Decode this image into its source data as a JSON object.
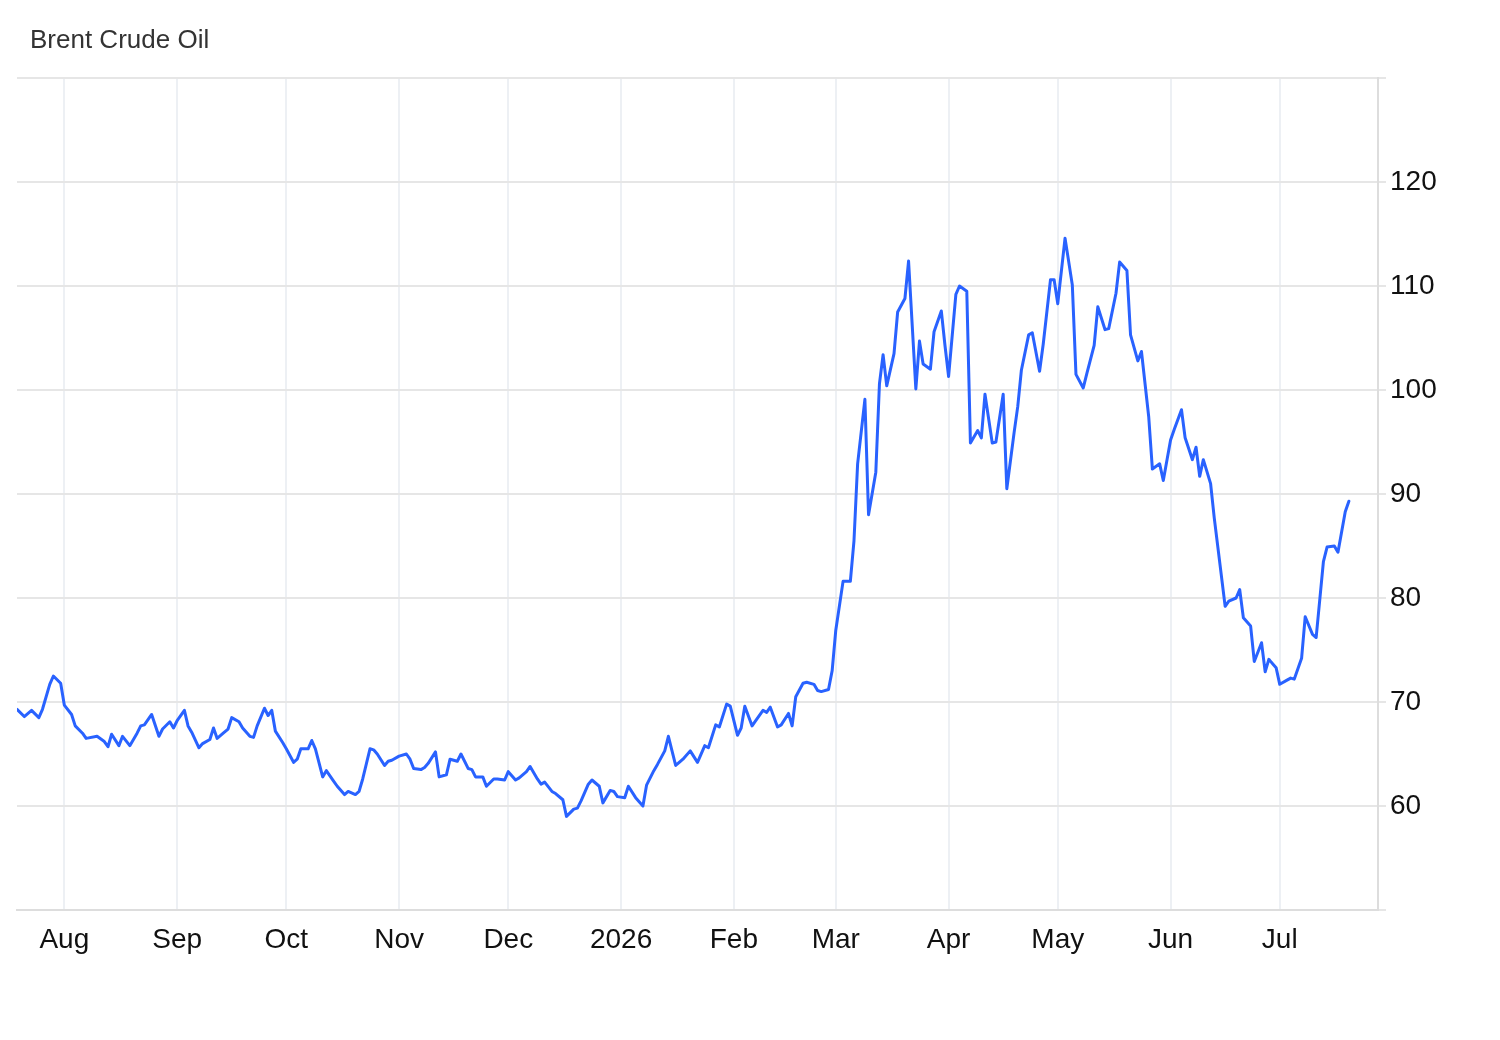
{
  "chart_data": {
    "type": "line",
    "title": "Brent Crude Oil",
    "x": [
      "2025-07-19",
      "2025-07-21",
      "2025-07-23",
      "2025-07-25",
      "2025-07-26",
      "2025-07-28",
      "2025-07-29",
      "2025-07-31",
      "2025-08-01",
      "2025-08-03",
      "2025-08-04",
      "2025-08-06",
      "2025-08-07",
      "2025-08-10",
      "2025-08-12",
      "2025-08-13",
      "2025-08-14",
      "2025-08-16",
      "2025-08-17",
      "2025-08-19",
      "2025-08-21",
      "2025-08-22",
      "2025-08-23",
      "2025-08-25",
      "2025-08-27",
      "2025-08-28",
      "2025-08-30",
      "2025-08-31",
      "2025-09-01",
      "2025-09-03",
      "2025-09-04",
      "2025-09-05",
      "2025-09-07",
      "2025-09-08",
      "2025-09-10",
      "2025-09-11",
      "2025-09-12",
      "2025-09-14",
      "2025-09-15",
      "2025-09-16",
      "2025-09-18",
      "2025-09-19",
      "2025-09-21",
      "2025-09-22",
      "2025-09-23",
      "2025-09-25",
      "2025-09-26",
      "2025-09-27",
      "2025-09-28",
      "2025-09-30",
      "2025-10-01",
      "2025-10-03",
      "2025-10-04",
      "2025-10-05",
      "2025-10-07",
      "2025-10-08",
      "2025-10-09",
      "2025-10-11",
      "2025-10-12",
      "2025-10-14",
      "2025-10-15",
      "2025-10-17",
      "2025-10-18",
      "2025-10-20",
      "2025-10-21",
      "2025-10-22",
      "2025-10-24",
      "2025-10-25",
      "2025-10-26",
      "2025-10-28",
      "2025-10-29",
      "2025-10-30",
      "2025-11-01",
      "2025-11-03",
      "2025-11-04",
      "2025-11-05",
      "2025-11-07",
      "2025-11-08",
      "2025-11-09",
      "2025-11-11",
      "2025-11-12",
      "2025-11-14",
      "2025-11-15",
      "2025-11-17",
      "2025-11-18",
      "2025-11-20",
      "2025-11-21",
      "2025-11-22",
      "2025-11-24",
      "2025-11-25",
      "2025-11-27",
      "2025-11-28",
      "2025-11-30",
      "2025-12-01",
      "2025-12-03",
      "2025-12-04",
      "2025-12-06",
      "2025-12-07",
      "2025-12-09",
      "2025-12-10",
      "2025-12-11",
      "2025-12-13",
      "2025-12-14",
      "2025-12-16",
      "2025-12-17",
      "2025-12-19",
      "2025-12-20",
      "2025-12-21",
      "2025-12-23",
      "2025-12-24",
      "2025-12-26",
      "2025-12-27",
      "2025-12-29",
      "2025-12-30",
      "2025-12-31",
      "2026-01-02",
      "2026-01-03",
      "2026-01-05",
      "2026-01-07",
      "2026-01-08",
      "2026-01-10",
      "2026-01-11",
      "2026-01-13",
      "2026-01-14",
      "2026-01-16",
      "2026-01-18",
      "2026-01-20",
      "2026-01-22",
      "2026-01-24",
      "2026-01-25",
      "2026-01-27",
      "2026-01-28",
      "2026-01-30",
      "2026-01-31",
      "2026-02-02",
      "2026-02-03",
      "2026-02-04",
      "2026-02-06",
      "2026-02-07",
      "2026-02-09",
      "2026-02-10",
      "2026-02-11",
      "2026-02-13",
      "2026-02-14",
      "2026-02-16",
      "2026-02-17",
      "2026-02-18",
      "2026-02-20",
      "2026-02-21",
      "2026-02-23",
      "2026-02-24",
      "2026-02-25",
      "2026-02-27",
      "2026-02-28",
      "2026-03-01",
      "2026-03-03",
      "2026-03-05",
      "2026-03-06",
      "2026-03-07",
      "2026-03-09",
      "2026-03-10",
      "2026-03-12",
      "2026-03-13",
      "2026-03-14",
      "2026-03-15",
      "2026-03-17",
      "2026-03-18",
      "2026-03-20",
      "2026-03-21",
      "2026-03-23",
      "2026-03-24",
      "2026-03-25",
      "2026-03-27",
      "2026-03-28",
      "2026-03-30",
      "2026-03-31",
      "2026-04-01",
      "2026-04-03",
      "2026-04-04",
      "2026-04-06",
      "2026-04-07",
      "2026-04-09",
      "2026-04-10",
      "2026-04-11",
      "2026-04-13",
      "2026-04-14",
      "2026-04-16",
      "2026-04-17",
      "2026-04-19",
      "2026-04-20",
      "2026-04-21",
      "2026-04-23",
      "2026-04-24",
      "2026-04-26",
      "2026-04-27",
      "2026-04-29",
      "2026-04-30",
      "2026-05-01",
      "2026-05-03",
      "2026-05-05",
      "2026-05-06",
      "2026-05-08",
      "2026-05-09",
      "2026-05-11",
      "2026-05-12",
      "2026-05-14",
      "2026-05-15",
      "2026-05-17",
      "2026-05-18",
      "2026-05-20",
      "2026-05-21",
      "2026-05-23",
      "2026-05-24",
      "2026-05-26",
      "2026-05-27",
      "2026-05-29",
      "2026-05-30",
      "2026-06-01",
      "2026-06-02",
      "2026-06-04",
      "2026-06-05",
      "2026-06-07",
      "2026-06-08",
      "2026-06-09",
      "2026-06-10",
      "2026-06-12",
      "2026-06-13",
      "2026-06-16",
      "2026-06-17",
      "2026-06-19",
      "2026-06-20",
      "2026-06-21",
      "2026-06-23",
      "2026-06-24",
      "2026-06-26",
      "2026-06-27",
      "2026-06-28",
      "2026-06-30",
      "2026-07-01",
      "2026-07-03",
      "2026-07-04",
      "2026-07-05",
      "2026-07-07",
      "2026-07-08",
      "2026-07-10",
      "2026-07-11",
      "2026-07-13",
      "2026-07-14",
      "2026-07-16",
      "2026-07-17",
      "2026-07-19",
      "2026-07-20"
    ],
    "values": [
      69.3,
      68.6,
      69.2,
      68.5,
      69.3,
      71.7,
      72.5,
      71.8,
      69.7,
      68.8,
      67.7,
      67.0,
      66.5,
      66.7,
      66.2,
      65.7,
      66.9,
      65.8,
      66.7,
      65.8,
      67.0,
      67.7,
      67.8,
      68.8,
      66.7,
      67.4,
      68.1,
      67.5,
      68.2,
      69.2,
      67.7,
      67.1,
      65.6,
      66.0,
      66.4,
      67.5,
      66.5,
      67.1,
      67.4,
      68.5,
      68.1,
      67.5,
      66.7,
      66.6,
      67.7,
      69.4,
      68.7,
      69.2,
      67.2,
      66.1,
      65.5,
      64.2,
      64.5,
      65.5,
      65.5,
      66.3,
      65.5,
      62.8,
      63.4,
      62.4,
      61.9,
      61.1,
      61.4,
      61.1,
      61.4,
      62.6,
      65.5,
      65.4,
      65.0,
      63.9,
      64.3,
      64.4,
      64.8,
      65.0,
      64.5,
      63.6,
      63.5,
      63.7,
      64.1,
      65.2,
      62.8,
      63.0,
      64.5,
      64.3,
      65.0,
      63.6,
      63.5,
      62.8,
      62.8,
      61.9,
      62.6,
      62.6,
      62.5,
      63.3,
      62.5,
      62.7,
      63.3,
      63.8,
      62.6,
      62.1,
      62.3,
      61.4,
      61.2,
      60.6,
      59.0,
      59.7,
      59.8,
      60.5,
      62.1,
      62.5,
      61.9,
      60.3,
      61.5,
      61.4,
      60.9,
      60.8,
      61.9,
      60.8,
      60.0,
      62.0,
      63.4,
      64.0,
      65.3,
      66.7,
      63.9,
      64.5,
      65.3,
      64.2,
      65.8,
      65.6,
      67.8,
      67.6,
      69.8,
      69.6,
      66.8,
      67.5,
      69.6,
      67.7,
      68.2,
      69.2,
      69.0,
      69.5,
      67.6,
      67.8,
      68.9,
      67.7,
      70.5,
      71.8,
      71.9,
      71.7,
      71.1,
      71.0,
      71.2,
      73.0,
      76.9,
      81.6,
      81.6,
      85.5,
      92.9,
      99.1,
      88.0,
      92.1,
      100.6,
      103.4,
      100.4,
      103.5,
      107.5,
      108.8,
      112.4,
      100.1,
      104.7,
      102.5,
      102.0,
      105.6,
      107.6,
      104.3,
      101.3,
      109.2,
      110.0,
      109.5,
      94.9,
      96.1,
      95.4,
      99.6,
      94.9,
      95.0,
      99.6,
      90.5,
      95.9,
      98.4,
      101.9,
      105.3,
      105.5,
      101.8,
      104.4,
      110.6,
      110.6,
      108.3,
      114.6,
      110.1,
      101.5,
      100.2,
      101.6,
      104.3,
      108.0,
      105.8,
      105.9,
      109.3,
      112.3,
      111.5,
      105.3,
      102.8,
      103.7,
      97.4,
      92.4,
      92.9,
      91.3,
      95.2,
      96.2,
      98.1,
      95.4,
      93.3,
      94.5,
      91.7,
      93.3,
      91.0,
      87.7,
      79.2,
      79.7,
      80.0,
      80.8,
      78.1,
      77.3,
      73.9,
      75.7,
      72.9,
      74.1,
      73.3,
      71.7,
      72.1,
      72.3,
      72.2,
      74.2,
      78.2,
      76.5,
      76.2,
      83.5,
      84.9,
      85.0,
      84.4,
      88.3,
      89.3
    ],
    "color": "#2962ff",
    "xlim": [
      "2025-07-19",
      "2026-07-28"
    ],
    "xticks": [
      {
        "value": "2025-08-01",
        "label": "Aug"
      },
      {
        "value": "2025-09-01",
        "label": "Sep"
      },
      {
        "value": "2025-10-01",
        "label": "Oct"
      },
      {
        "value": "2025-11-01",
        "label": "Nov"
      },
      {
        "value": "2025-12-01",
        "label": "Dec"
      },
      {
        "value": "2026-01-01",
        "label": "2026"
      },
      {
        "value": "2026-02-01",
        "label": "Feb"
      },
      {
        "value": "2026-03-01",
        "label": "Mar"
      },
      {
        "value": "2026-04-01",
        "label": "Apr"
      },
      {
        "value": "2026-05-01",
        "label": "May"
      },
      {
        "value": "2026-06-01",
        "label": "Jun"
      },
      {
        "value": "2026-07-01",
        "label": "Jul"
      }
    ],
    "ylim": [
      50,
      130
    ],
    "yticks": [
      {
        "value": 50,
        "label": null
      },
      60,
      70,
      80,
      90,
      100,
      110,
      120,
      {
        "value": 130,
        "label": null
      }
    ],
    "grid": true
  }
}
